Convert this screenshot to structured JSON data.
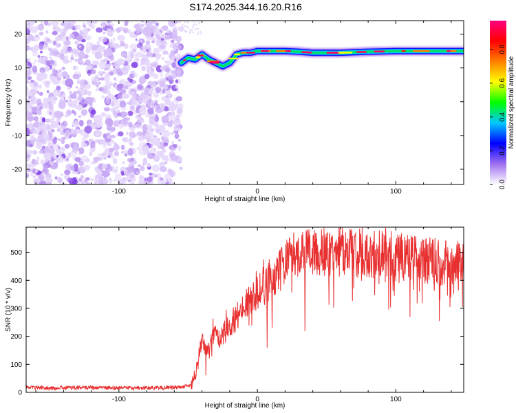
{
  "title": "S174.2025.344.16.20.R16",
  "chart_data": [
    {
      "type": "heatmap",
      "xlabel": "Height of straight line (km)",
      "ylabel": "Frequency (Hz)",
      "xlim": [
        -167,
        149
      ],
      "ylim": [
        -24.5,
        24
      ],
      "xticks": [
        -100,
        0,
        100
      ],
      "yticks": [
        -20,
        -10,
        0,
        10,
        20
      ],
      "noise_region_x": [
        -167,
        -55
      ],
      "signal_track": [
        [
          -55,
          11.5
        ],
        [
          -50,
          13
        ],
        [
          -45,
          12.5
        ],
        [
          -40,
          14
        ],
        [
          -35,
          12.5
        ],
        [
          -30,
          11.5
        ],
        [
          -25,
          10.5
        ],
        [
          -20,
          11.5
        ],
        [
          -15,
          14
        ],
        [
          -10,
          14.5
        ],
        [
          -5,
          14.5
        ],
        [
          0,
          15
        ],
        [
          10,
          15
        ],
        [
          20,
          15
        ],
        [
          30,
          14.8
        ],
        [
          40,
          14.5
        ],
        [
          60,
          14.5
        ],
        [
          80,
          14.8
        ],
        [
          100,
          15
        ],
        [
          120,
          15
        ],
        [
          149,
          15
        ]
      ],
      "colorbar": {
        "label": "Normalized spectral amplitude",
        "range": [
          0,
          0.97
        ],
        "ticks": [
          "0.0",
          "0.2",
          "0.4",
          "0.6",
          "0.8"
        ],
        "colors": [
          "#ffffff",
          "#a070f0",
          "#0000ff",
          "#00c8ff",
          "#00ff00",
          "#ffff00",
          "#ff8000",
          "#ff0000",
          "#ff0080"
        ]
      }
    },
    {
      "type": "line",
      "xlabel": "Height of straight line (km)",
      "ylabel": "SNR (10 * v/v)",
      "xlim": [
        -167,
        149
      ],
      "ylim": [
        0,
        590
      ],
      "xticks": [
        -100,
        0,
        100
      ],
      "yticks": [
        0,
        100,
        200,
        300,
        400,
        500
      ],
      "color": "#e83030",
      "series": [
        {
          "name": "SNR",
          "x": [
            -167,
            -150,
            -130,
            -110,
            -90,
            -70,
            -55,
            -48,
            -45,
            -42,
            -40,
            -37,
            -35,
            -32,
            -30,
            -27,
            -25,
            -22,
            -20,
            -17,
            -15,
            -12,
            -10,
            -7,
            -5,
            -2,
            0,
            3,
            5,
            8,
            10,
            13,
            15,
            18,
            20,
            25,
            30,
            35,
            40,
            45,
            50,
            55,
            60,
            65,
            70,
            75,
            80,
            85,
            90,
            95,
            100,
            105,
            110,
            115,
            120,
            125,
            130,
            135,
            140,
            145,
            149
          ],
          "values": [
            18,
            15,
            17,
            16,
            15,
            17,
            18,
            25,
            60,
            140,
            180,
            150,
            160,
            200,
            210,
            190,
            220,
            240,
            235,
            250,
            270,
            290,
            300,
            320,
            330,
            345,
            360,
            375,
            380,
            395,
            405,
            425,
            445,
            455,
            470,
            485,
            500,
            500,
            495,
            510,
            505,
            495,
            505,
            500,
            490,
            505,
            495,
            490,
            495,
            485,
            480,
            485,
            475,
            480,
            470,
            470,
            465,
            460,
            455,
            460,
            465
          ]
        }
      ]
    }
  ]
}
